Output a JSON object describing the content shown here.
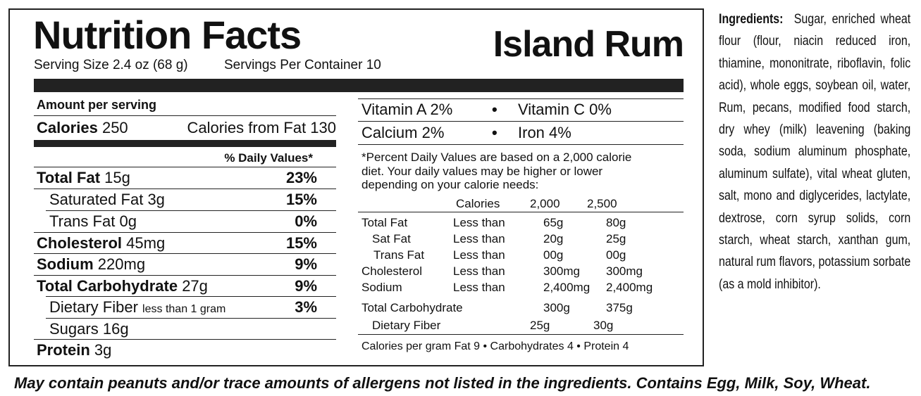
{
  "header": {
    "title": "Nutrition Facts",
    "product": "Island Rum",
    "serving_size": "Serving Size 2.4 oz (68 g)",
    "servings_per_container": "Servings Per Container 10"
  },
  "amount_per_serving": "Amount per serving",
  "calories": {
    "label": "Calories",
    "value": "250",
    "from_fat": "Calories from Fat 130"
  },
  "daily_values_heading": "% Daily Values*",
  "nutrients": [
    {
      "label": "Total Fat",
      "amount": "15g",
      "dv": "23%"
    },
    {
      "label": "Saturated Fat",
      "amount": "3g",
      "dv": "15%"
    },
    {
      "label": "Trans Fat",
      "amount": "0g",
      "dv": "0%"
    },
    {
      "label": "Cholesterol",
      "amount": "45mg",
      "dv": "15%"
    },
    {
      "label": "Sodium",
      "amount": "220mg",
      "dv": "9%"
    },
    {
      "label": "Total Carbohydrate",
      "amount": "27g",
      "dv": "9%"
    },
    {
      "label": "Dietary Fiber",
      "amount": "less than 1 gram",
      "dv": "3%"
    },
    {
      "label": "Sugars",
      "amount": "16g"
    },
    {
      "label": "Protein",
      "amount": "3g"
    }
  ],
  "vitamins": [
    {
      "name": "Vitamin A",
      "dv": "2%"
    },
    {
      "name": "Vitamin C",
      "dv": "0%"
    },
    {
      "name": "Calcium",
      "dv": "2%"
    },
    {
      "name": "Iron",
      "dv": "4%"
    }
  ],
  "footnote": "*Percent Daily Values are based on a 2,000 calorie diet. Your daily values may be higher or lower depending on your calorie needs:",
  "dv_table": {
    "header": [
      "Calories",
      "2,000",
      "2,500"
    ],
    "rows": [
      [
        "Total Fat",
        "Less than",
        "65g",
        "80g"
      ],
      [
        "Sat Fat",
        "Less than",
        "20g",
        "25g"
      ],
      [
        "Trans Fat",
        "Less than",
        "00g",
        "00g"
      ],
      [
        "Cholesterol",
        "Less than",
        "300mg",
        "300mg"
      ],
      [
        "Sodium",
        "Less than",
        "2,400mg",
        "2,400mg"
      ],
      [
        "Total Carbohydrate",
        "300g",
        "375g"
      ],
      [
        "Dietary Fiber",
        "25g",
        "30g"
      ]
    ]
  },
  "calories_per_gram": "Calories per gram  Fat 9 • Carbohydrates 4 • Protein 4",
  "ingredients": {
    "label": "Ingredients:",
    "text": "Sugar, enriched wheat flour (flour, niacin reduced iron, thiamine, mononitrate, riboflavin, folic acid), whole eggs, soybean oil, water, Rum, pecans, modified food starch, dry whey (milk) leavening (baking soda, sodium aluminum phosphate, aluminum sulfate), vital wheat gluten, salt, mono and diglycerides, lactylate, dextrose, corn syrup solids, corn starch, wheat starch, xanthan gum, natural rum flavors, potassium sorbate (as a mold inhibitor)."
  },
  "allergen_statement": "May contain peanuts and/or trace amounts of allergens not listed in the ingredients. Contains Egg, Milk, Soy, Wheat."
}
